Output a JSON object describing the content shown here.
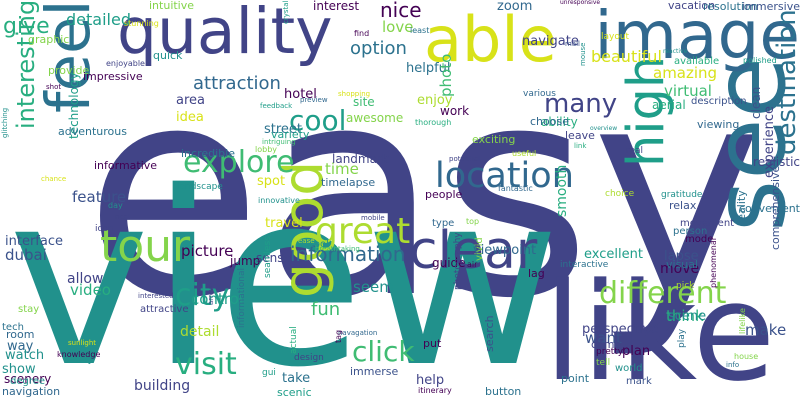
{
  "background": "#ffffff",
  "palette": {
    "dark_purple": "#440154",
    "indigo": "#3b528b",
    "navy_blue": "#414487",
    "steel_blue": "#31688e",
    "teal_blue": "#2c728e",
    "teal": "#21918c",
    "sea_green": "#1f9e89",
    "green_teal": "#28ae80",
    "green": "#3fbc73",
    "light_green": "#5ec962",
    "lime": "#84d44b",
    "yellow_green": "#addc30",
    "yellow": "#d8e219",
    "bright_yellow": "#fde725"
  },
  "words": [
    "easy",
    "view",
    "like",
    "see",
    "image",
    "able",
    "quality",
    "feel",
    "good",
    "high",
    "clear",
    "tour",
    "great",
    "location",
    "city",
    "visit",
    "explore",
    "different",
    "click",
    "many",
    "cool",
    "destination",
    "interesting",
    "information",
    "give",
    "detailed",
    "nice",
    "attraction",
    "option",
    "fun",
    "beautiful",
    "make",
    "seem",
    "time",
    "picture",
    "control",
    "amazing",
    "feature",
    "navigate",
    "helpful",
    "zoom",
    "love",
    "enjoy",
    "hotel",
    "area",
    "idea",
    "street",
    "photo",
    "move",
    "think",
    "want",
    "travel",
    "spot",
    "virtual",
    "lapse",
    "interface",
    "dubai",
    "allow",
    "video",
    "detail",
    "building",
    "experience",
    "sense",
    "guide",
    "viewpoint",
    "smooth",
    "excellent",
    "landmark",
    "technology",
    "graphic",
    "intuitive",
    "interest",
    "vacation",
    "resolution",
    "immersive",
    "provide",
    "aerial",
    "various",
    "realistic",
    "scene",
    "clean",
    "ability",
    "site",
    "awesome",
    "work",
    "variety",
    "quick",
    "impressive",
    "adventurous",
    "informative",
    "incredible",
    "timelapse",
    "exciting",
    "people",
    "fantastic",
    "choose",
    "visual",
    "reality",
    "relax",
    "convenient",
    "comprehensive",
    "perspective",
    "plan",
    "come",
    "help",
    "take",
    "put",
    "show",
    "way",
    "watch",
    "room",
    "scenery",
    "navigation",
    "immerse",
    "button",
    "search",
    "point",
    "world",
    "mark",
    "play",
    "itinerary",
    "scenic",
    "degree",
    "key",
    "knowledge",
    "stay",
    "tech",
    "attractive",
    "interested",
    "sunlight",
    "design",
    "actual",
    "jump",
    "tool",
    "icon",
    "neat",
    "day",
    "lobby",
    "innovative",
    "landscape",
    "mode",
    "movement",
    "person",
    "top",
    "type",
    "mobile",
    "lag",
    "interactive",
    "air",
    "vivid",
    "photography",
    "informational",
    "seamless",
    "navagation",
    "tag",
    "gui",
    "arrow",
    "glitching",
    "shot",
    "enjoyable",
    "stunning",
    "crystal",
    "find",
    "least",
    "unresponsive",
    "mall",
    "layout",
    "reactive",
    "polished",
    "available",
    "description",
    "viewing",
    "overview",
    "leave",
    "link",
    "real",
    "choice",
    "gratitude",
    "phenomenal",
    "lifelike",
    "pretty",
    "tell",
    "pick",
    "house",
    "info",
    "shopping",
    "preview",
    "feedback",
    "thorough",
    "intriguing",
    "potential",
    "useful",
    "mouse",
    "ease",
    "breathtaking",
    "chance"
  ]
}
